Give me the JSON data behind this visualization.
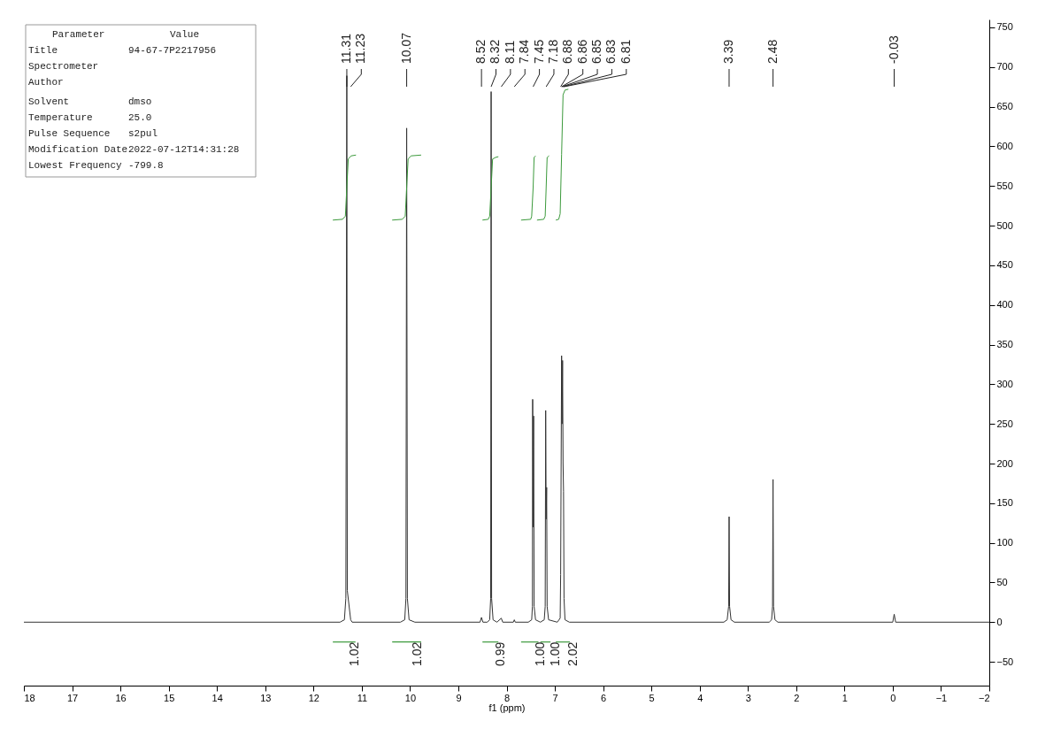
{
  "chart_data": {
    "type": "line",
    "xlabel": "f1 (ppm)",
    "xlim": [
      18,
      -2
    ],
    "xticks": [
      18,
      17,
      16,
      15,
      14,
      13,
      12,
      11,
      10,
      9,
      8,
      7,
      6,
      5,
      4,
      3,
      2,
      1,
      0,
      -1,
      -2
    ],
    "ylim": [
      -80,
      760
    ],
    "yticks": [
      -50,
      0,
      50,
      100,
      150,
      200,
      250,
      300,
      350,
      400,
      450,
      500,
      550,
      600,
      650,
      700,
      750
    ],
    "grid": false,
    "line_style": "solid",
    "series": [
      {
        "color": "#333333",
        "x": [
          18,
          11.45,
          11.36,
          11.33,
          11.31,
          11.3,
          11.23,
          11.2,
          10.2,
          10.11,
          10.085,
          10.07,
          10.055,
          10.02,
          9.9,
          8.55,
          8.52,
          8.49,
          8.4,
          8.35,
          8.33,
          8.32,
          8.31,
          8.28,
          8.2,
          8.11,
          8.08,
          7.86,
          7.84,
          7.82,
          7.55,
          7.48,
          7.465,
          7.46,
          7.45,
          7.44,
          7.43,
          7.4,
          7.3,
          7.22,
          7.2,
          7.19,
          7.18,
          7.17,
          7.16,
          7.13,
          6.95,
          6.89,
          6.88,
          6.86,
          6.85,
          6.84,
          6.83,
          6.82,
          6.81,
          6.79,
          6.7,
          3.5,
          3.43,
          3.4,
          3.39,
          3.38,
          3.35,
          3.28,
          2.56,
          2.51,
          2.49,
          2.48,
          2.47,
          2.44,
          2.38,
          0.0,
          -0.03,
          -0.06,
          -2
        ],
        "values": [
          0,
          0,
          3,
          30,
          689,
          40,
          3,
          0,
          0,
          3,
          30,
          623,
          30,
          3,
          0,
          0,
          6,
          0,
          0,
          3,
          30,
          669,
          30,
          3,
          0,
          5,
          0,
          0,
          3,
          0,
          0,
          3,
          20,
          281,
          120,
          260,
          20,
          3,
          0,
          3,
          20,
          267,
          130,
          170,
          20,
          3,
          0,
          5,
          60,
          336,
          250,
          330,
          200,
          165,
          30,
          3,
          0,
          0,
          3,
          20,
          133,
          20,
          3,
          0,
          0,
          3,
          20,
          180,
          20,
          3,
          0,
          0,
          10,
          0,
          0
        ]
      },
      {
        "color": "#3c9a3c",
        "x": [
          11.6,
          11.4,
          11.34,
          11.31,
          11.28,
          11.22,
          11.12
        ],
        "values": [
          507,
          508,
          512,
          548,
          584,
          588,
          589
        ]
      },
      {
        "color": "#3c9a3c",
        "x": [
          10.37,
          10.16,
          10.1,
          10.07,
          10.04,
          9.98,
          9.77
        ],
        "values": [
          507,
          508,
          512,
          548,
          584,
          588,
          589
        ]
      },
      {
        "color": "#3c9a3c",
        "x": [
          8.5,
          8.38,
          8.35,
          8.32,
          8.29,
          8.23,
          8.17
        ],
        "values": [
          507,
          508,
          512,
          548,
          584,
          586,
          587
        ]
      },
      {
        "color": "#3c9a3c",
        "x": [
          7.7,
          7.5,
          7.48,
          7.45,
          7.43,
          7.4
        ],
        "values": [
          507,
          508,
          512,
          548,
          586,
          588
        ]
      },
      {
        "color": "#3c9a3c",
        "x": [
          7.37,
          7.23,
          7.2,
          7.18,
          7.16,
          7.12
        ],
        "values": [
          507,
          508,
          512,
          548,
          586,
          588
        ]
      },
      {
        "color": "#3c9a3c",
        "x": [
          6.98,
          6.92,
          6.89,
          6.86,
          6.83,
          6.79,
          6.72
        ],
        "values": [
          507,
          508,
          515,
          590,
          665,
          671,
          672
        ]
      },
      {
        "color": "#3c9a3c",
        "x": [
          11.6,
          11.13
        ],
        "values": [
          -25,
          -25
        ]
      },
      {
        "color": "#3c9a3c",
        "x": [
          10.37,
          9.77
        ],
        "values": [
          -25,
          -25
        ]
      },
      {
        "color": "#3c9a3c",
        "x": [
          8.5,
          8.17
        ],
        "values": [
          -25,
          -25
        ]
      },
      {
        "color": "#3c9a3c",
        "x": [
          7.7,
          7.34
        ],
        "values": [
          -25,
          -25
        ]
      },
      {
        "color": "#3c9a3c",
        "x": [
          7.3,
          7.09
        ],
        "values": [
          -25,
          -25
        ]
      },
      {
        "color": "#3c9a3c",
        "x": [
          6.98,
          6.69
        ],
        "values": [
          -25,
          -25
        ]
      }
    ],
    "annotations": [
      {
        "text": "11.31",
        "x": 11.31
      },
      {
        "text": "11.23",
        "x": 11.23
      },
      {
        "text": "10.07",
        "x": 10.07
      },
      {
        "text": "8.52",
        "x": 8.52
      },
      {
        "text": "8.32",
        "x": 8.32
      },
      {
        "text": "8.11",
        "x": 8.11
      },
      {
        "text": "7.84",
        "x": 7.84
      },
      {
        "text": "7.45",
        "x": 7.45
      },
      {
        "text": "7.18",
        "x": 7.18
      },
      {
        "text": "6.88",
        "x": 6.88
      },
      {
        "text": "6.86",
        "x": 6.86
      },
      {
        "text": "6.85",
        "x": 6.85
      },
      {
        "text": "6.83",
        "x": 6.83
      },
      {
        "text": "6.81",
        "x": 6.81
      },
      {
        "text": "3.39",
        "x": 3.39
      },
      {
        "text": "2.48",
        "x": 2.48
      },
      {
        "text": "-0.03",
        "x": -0.03
      },
      {
        "text": "1.02",
        "x": 11.365,
        "y": -25
      },
      {
        "text": "1.02",
        "x": 10.07,
        "y": -25
      },
      {
        "text": "0.99",
        "x": 8.335,
        "y": -25
      },
      {
        "text": "1.00",
        "x": 7.51,
        "y": -25
      },
      {
        "text": "1.00",
        "x": 7.205,
        "y": -25
      },
      {
        "text": "2.02",
        "x": 6.835,
        "y": -25
      },
      "Parameter",
      "Value",
      "Title",
      "94-67-7P2217956",
      "Spectrometer",
      null,
      "Author",
      null,
      "Solvent",
      "dmso",
      "Temperature",
      "25.0",
      "Pulse Sequence",
      "s2pul",
      "Modification Date",
      "2022-07-12T14:31:28",
      "Lowest Frequency",
      "-799.8"
    ]
  }
}
